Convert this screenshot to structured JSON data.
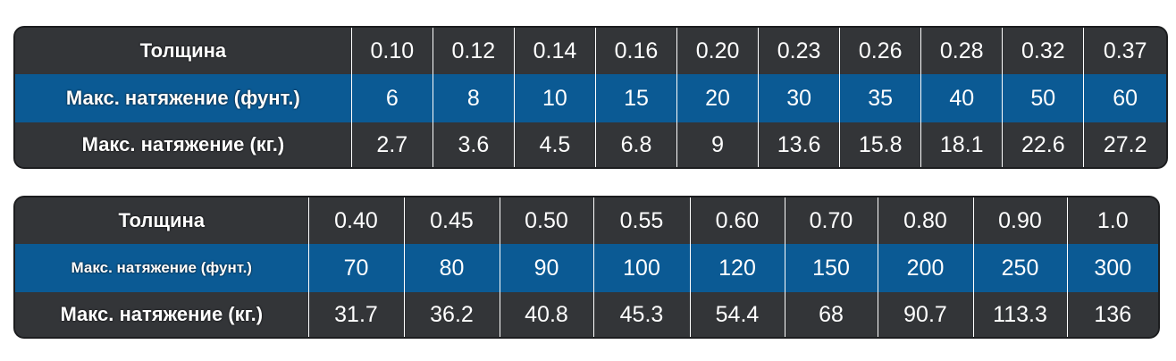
{
  "tables": [
    {
      "labels": {
        "thickness": "Толщина",
        "tension_lb": "Макс. натяжение (фунт.)",
        "tension_kg": "Макс. натяжение (кг.)"
      },
      "thickness": [
        "0.10",
        "0.12",
        "0.14",
        "0.16",
        "0.20",
        "0.23",
        "0.26",
        "0.28",
        "0.32",
        "0.37"
      ],
      "tension_lb": [
        "6",
        "8",
        "10",
        "15",
        "20",
        "30",
        "35",
        "40",
        "50",
        "60"
      ],
      "tension_kg": [
        "2.7",
        "3.6",
        "4.5",
        "6.8",
        "9",
        "13.6",
        "15.8",
        "18.1",
        "22.6",
        "27.2"
      ]
    },
    {
      "labels": {
        "thickness": "Толщина",
        "tension_lb": "Макс. натяжение (фунт.)",
        "tension_kg": "Макс. натяжение (кг.)"
      },
      "thickness": [
        "0.40",
        "0.45",
        "0.50",
        "0.55",
        "0.60",
        "0.70",
        "0.80",
        "0.90",
        "1.0"
      ],
      "tension_lb": [
        "70",
        "80",
        "90",
        "100",
        "120",
        "150",
        "200",
        "250",
        "300"
      ],
      "tension_kg": [
        "31.7",
        "36.2",
        "40.8",
        "45.3",
        "54.4",
        "68",
        "90.7",
        "113.3",
        "136"
      ]
    }
  ],
  "colors": {
    "dark_row": "#333538",
    "blue_row": "#0b5a94",
    "text": "#ffffff",
    "divider": "#ffffff"
  }
}
